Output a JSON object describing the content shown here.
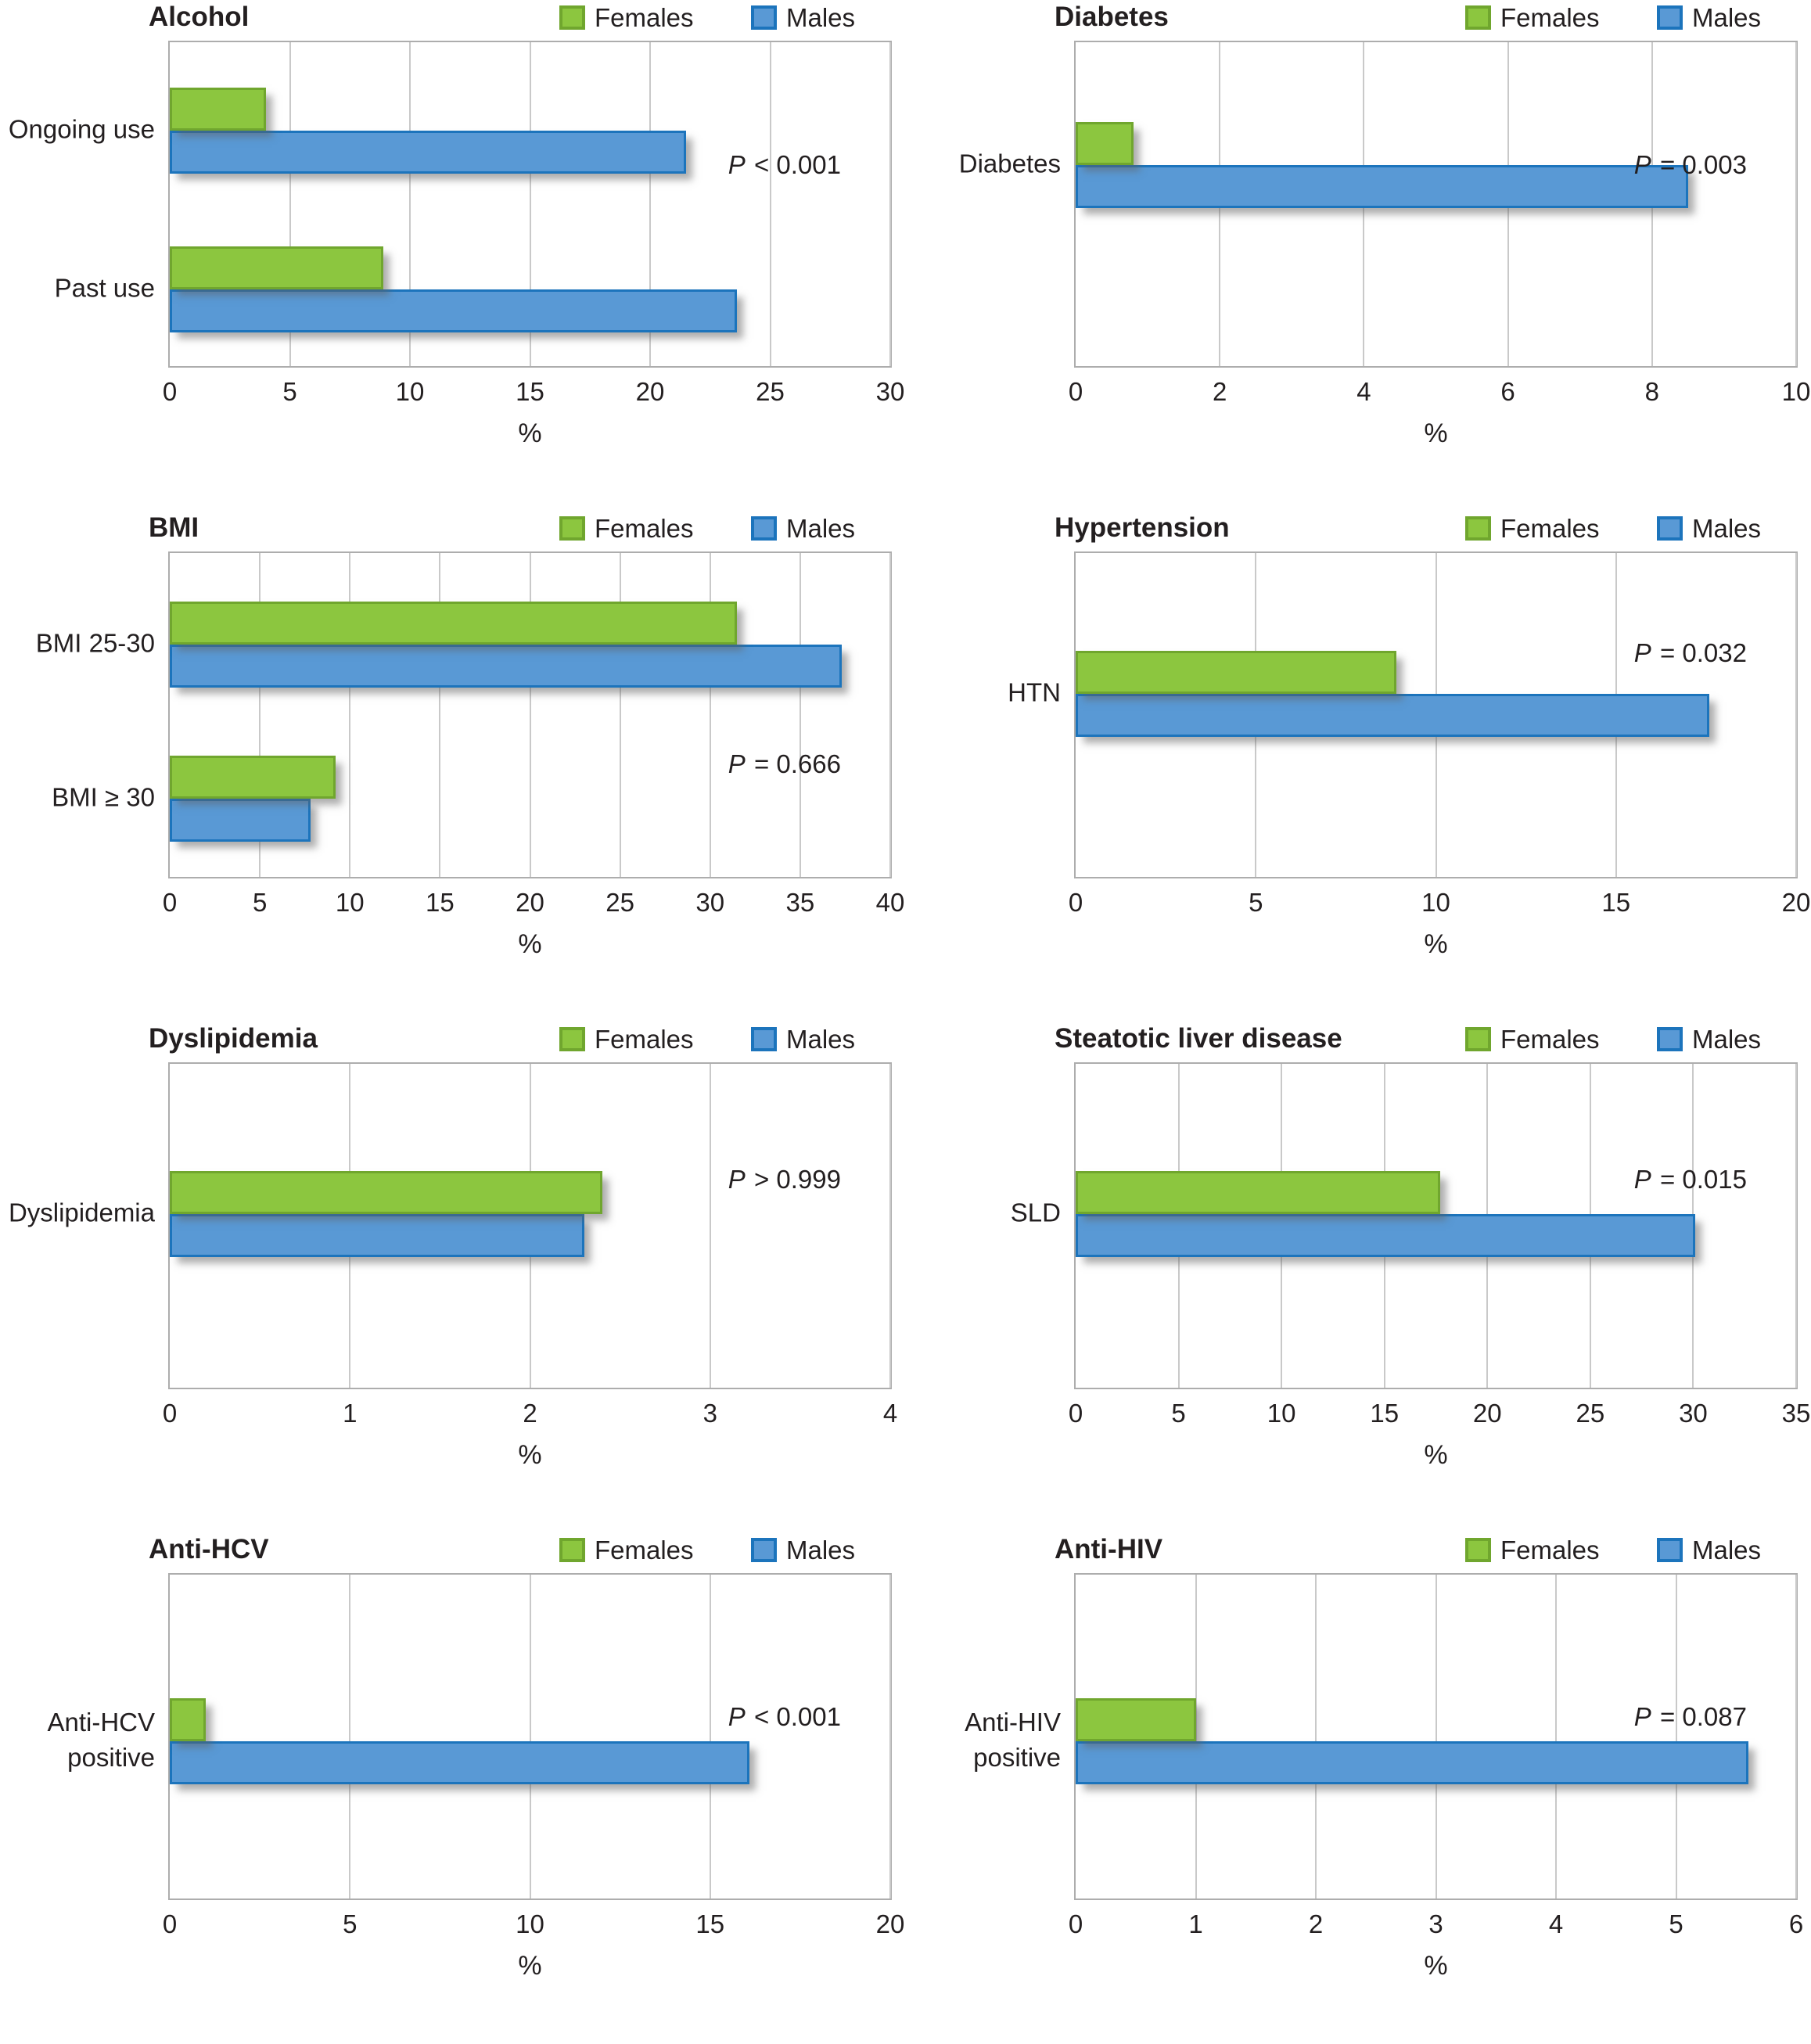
{
  "figure": {
    "xlabel": "%",
    "legend": {
      "females": "Females",
      "males": "Males",
      "position": "top-right"
    },
    "colors": {
      "females_fill": "#8CC63F",
      "females_border": "#70A62E",
      "males_fill": "#5999D5",
      "males_border": "#1C74BC",
      "text": "#231F20",
      "grid": "#C9C9C9",
      "plot_border": "#ADADAD"
    }
  },
  "chart_data": [
    {
      "type": "bar",
      "orientation": "horizontal",
      "title": "Alcohol",
      "categories": [
        "Ongoing use",
        "Past use"
      ],
      "series": [
        {
          "name": "Females",
          "values": [
            4.0,
            8.9
          ]
        },
        {
          "name": "Males",
          "values": [
            21.5,
            23.6
          ]
        }
      ],
      "p_label": "P < 0.001",
      "xlim": [
        0,
        30
      ],
      "xticks": [
        0,
        5,
        10,
        15,
        20,
        25,
        30
      ],
      "xlabel": "%",
      "grid": "vertical-gridlines",
      "legend_position": "top-right",
      "layout": {
        "row": 0,
        "col": 0,
        "junctions": [
          0.27,
          0.755
        ],
        "p_y": 0.38
      }
    },
    {
      "type": "bar",
      "orientation": "horizontal",
      "title": "Diabetes",
      "categories": [
        "Diabetes"
      ],
      "series": [
        {
          "name": "Females",
          "values": [
            0.8
          ]
        },
        {
          "name": "Males",
          "values": [
            8.5
          ]
        }
      ],
      "p_label": "P = 0.003",
      "xlim": [
        0,
        10
      ],
      "xticks": [
        0,
        2,
        4,
        6,
        8,
        10
      ],
      "xlabel": "%",
      "grid": "vertical-gridlines",
      "legend_position": "top-right",
      "layout": {
        "row": 0,
        "col": 1,
        "junctions": [
          0.375
        ],
        "p_y": 0.38
      }
    },
    {
      "type": "bar",
      "orientation": "horizontal",
      "title": "BMI",
      "categories": [
        "BMI 25-30",
        "BMI ≥ 30"
      ],
      "series": [
        {
          "name": "Females",
          "values": [
            31.5,
            9.2
          ]
        },
        {
          "name": "Males",
          "values": [
            37.3,
            7.8
          ]
        }
      ],
      "p_label": "P = 0.666",
      "xlim": [
        0,
        40
      ],
      "xticks": [
        0,
        5,
        10,
        15,
        20,
        25,
        30,
        35,
        40
      ],
      "xlabel": "%",
      "grid": "vertical-gridlines",
      "legend_position": "top-right",
      "layout": {
        "row": 1,
        "col": 0,
        "junctions": [
          0.28,
          0.75
        ],
        "p_y": 0.65
      }
    },
    {
      "type": "bar",
      "orientation": "horizontal",
      "title": "Hypertension",
      "categories": [
        "HTN"
      ],
      "series": [
        {
          "name": "Females",
          "values": [
            8.9
          ]
        },
        {
          "name": "Males",
          "values": [
            17.6
          ]
        }
      ],
      "p_label": "P = 0.032",
      "xlim": [
        0,
        20
      ],
      "xticks": [
        0,
        5,
        10,
        15,
        20
      ],
      "xlabel": "%",
      "grid": "vertical-gridlines",
      "legend_position": "top-right",
      "layout": {
        "row": 1,
        "col": 1,
        "junctions": [
          0.43
        ],
        "p_y": 0.31
      }
    },
    {
      "type": "bar",
      "orientation": "horizontal",
      "title": "Dyslipidemia",
      "categories": [
        "Dyslipidemia"
      ],
      "series": [
        {
          "name": "Females",
          "values": [
            2.4
          ]
        },
        {
          "name": "Males",
          "values": [
            2.3
          ]
        }
      ],
      "p_label": "P > 0.999",
      "xlim": [
        0,
        4
      ],
      "xticks": [
        0,
        1,
        2,
        3,
        4
      ],
      "xlabel": "%",
      "grid": "vertical-gridlines",
      "legend_position": "top-right",
      "layout": {
        "row": 2,
        "col": 0,
        "junctions": [
          0.46
        ],
        "p_y": 0.36
      }
    },
    {
      "type": "bar",
      "orientation": "horizontal",
      "title": "Steatotic liver disease",
      "categories": [
        "SLD"
      ],
      "series": [
        {
          "name": "Females",
          "values": [
            17.7
          ]
        },
        {
          "name": "Males",
          "values": [
            30.1
          ]
        }
      ],
      "p_label": "P = 0.015",
      "xlim": [
        0,
        35
      ],
      "xticks": [
        0,
        5,
        10,
        15,
        20,
        25,
        30,
        35
      ],
      "xlabel": "%",
      "grid": "vertical-gridlines",
      "legend_position": "top-right",
      "layout": {
        "row": 2,
        "col": 1,
        "junctions": [
          0.46
        ],
        "p_y": 0.36
      }
    },
    {
      "type": "bar",
      "orientation": "horizontal",
      "title": "Anti-HCV",
      "categories": [
        "Anti-HCV positive"
      ],
      "series": [
        {
          "name": "Females",
          "values": [
            1.0
          ]
        },
        {
          "name": "Males",
          "values": [
            16.1
          ]
        }
      ],
      "p_label": "P < 0.001",
      "xlim": [
        0,
        20
      ],
      "xticks": [
        0,
        5,
        10,
        15,
        20
      ],
      "xlabel": "%",
      "grid": "vertical-gridlines",
      "legend_position": "top-right",
      "layout": {
        "row": 3,
        "col": 0,
        "junctions": [
          0.51
        ],
        "p_y": 0.44,
        "label_lines": [
          [
            "Anti-HCV",
            "positive"
          ]
        ]
      }
    },
    {
      "type": "bar",
      "orientation": "horizontal",
      "title": "Anti-HIV",
      "categories": [
        "Anti-HIV positive"
      ],
      "series": [
        {
          "name": "Females",
          "values": [
            1.0
          ]
        },
        {
          "name": "Males",
          "values": [
            5.6
          ]
        }
      ],
      "p_label": "P = 0.087",
      "xlim": [
        0,
        6
      ],
      "xticks": [
        0,
        1,
        2,
        3,
        4,
        5,
        6
      ],
      "xlabel": "%",
      "grid": "vertical-gridlines",
      "legend_position": "top-right",
      "layout": {
        "row": 3,
        "col": 1,
        "junctions": [
          0.51
        ],
        "p_y": 0.44,
        "label_lines": [
          [
            "Anti-HIV",
            "positive"
          ]
        ]
      }
    }
  ]
}
